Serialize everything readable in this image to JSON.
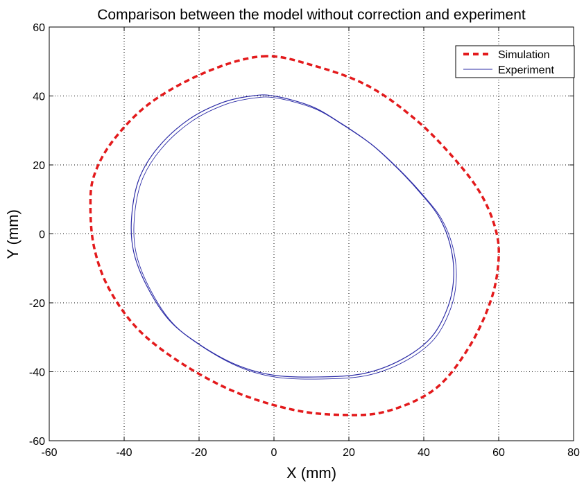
{
  "chart_data": {
    "type": "line",
    "title": "Comparison between the model without correction and experiment",
    "xlabel": "X (mm)",
    "ylabel": "Y (mm)",
    "xlim": [
      -60,
      80
    ],
    "ylim": [
      -60,
      60
    ],
    "xticks": [
      -60,
      -40,
      -20,
      0,
      20,
      40,
      60,
      80
    ],
    "yticks": [
      -60,
      -40,
      -20,
      0,
      20,
      40,
      60
    ],
    "grid": true,
    "legend_position": "top-right",
    "series": [
      {
        "name": "Simulation",
        "style": "dashed",
        "color": "#e31a1c",
        "points": [
          [
            -3,
            51.5
          ],
          [
            10,
            49
          ],
          [
            25,
            43
          ],
          [
            38,
            33
          ],
          [
            48,
            22
          ],
          [
            55,
            12
          ],
          [
            59,
            2
          ],
          [
            60,
            -7
          ],
          [
            58,
            -19
          ],
          [
            52,
            -33
          ],
          [
            43,
            -45
          ],
          [
            30,
            -51.5
          ],
          [
            18,
            -52.5
          ],
          [
            5,
            -51
          ],
          [
            -10,
            -46
          ],
          [
            -24,
            -38
          ],
          [
            -36,
            -28
          ],
          [
            -44,
            -16
          ],
          [
            -48,
            -4
          ],
          [
            -49,
            8
          ],
          [
            -48,
            17
          ],
          [
            -43,
            27
          ],
          [
            -33,
            38
          ],
          [
            -18,
            47
          ],
          [
            -3,
            51.5
          ]
        ]
      },
      {
        "name": "Experiment",
        "style": "solid",
        "color": "#2b2ba6",
        "points": [
          [
            0,
            40
          ],
          [
            10,
            37
          ],
          [
            18,
            32
          ],
          [
            26,
            26
          ],
          [
            33,
            19
          ],
          [
            39,
            12
          ],
          [
            44,
            5
          ],
          [
            47,
            -3
          ],
          [
            48,
            -12
          ],
          [
            46.5,
            -21
          ],
          [
            42,
            -30
          ],
          [
            34,
            -36.5
          ],
          [
            24,
            -40.5
          ],
          [
            12,
            -41.5
          ],
          [
            0,
            -41
          ],
          [
            -10,
            -38
          ],
          [
            -20,
            -32
          ],
          [
            -28,
            -25
          ],
          [
            -34,
            -15
          ],
          [
            -37.5,
            -5
          ],
          [
            -38,
            5
          ],
          [
            -36,
            16
          ],
          [
            -31,
            25
          ],
          [
            -23,
            33
          ],
          [
            -14,
            38
          ],
          [
            -6,
            40
          ],
          [
            0,
            40
          ]
        ]
      }
    ]
  }
}
